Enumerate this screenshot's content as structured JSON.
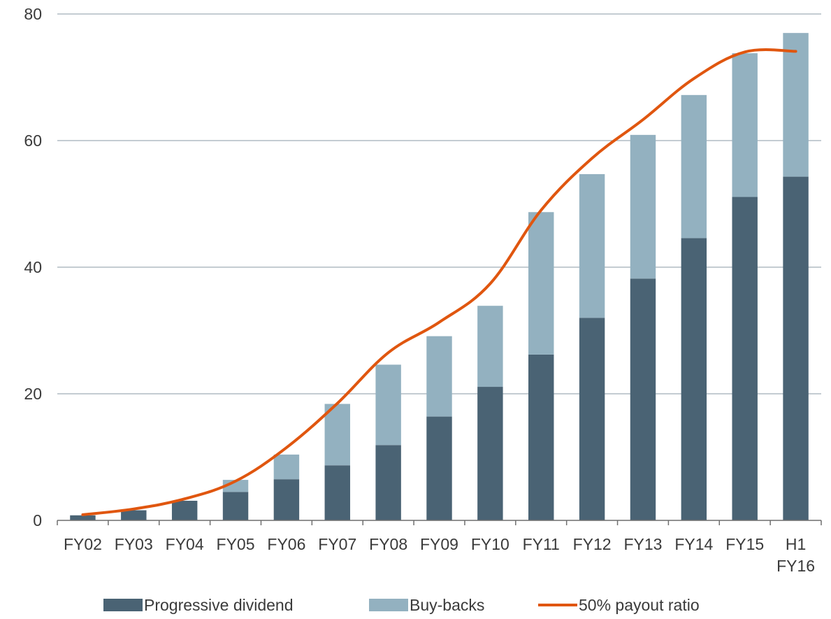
{
  "chart_data": {
    "type": "bar",
    "stacked": true,
    "categories": [
      [
        "FY02"
      ],
      [
        "FY03"
      ],
      [
        "FY04"
      ],
      [
        "FY05"
      ],
      [
        "FY06"
      ],
      [
        "FY07"
      ],
      [
        "FY08"
      ],
      [
        "FY09"
      ],
      [
        "FY10"
      ],
      [
        "FY11"
      ],
      [
        "FY12"
      ],
      [
        "FY13"
      ],
      [
        "FY14"
      ],
      [
        "FY15"
      ],
      [
        "H1",
        "FY16"
      ]
    ],
    "series": [
      {
        "name": "Progressive dividend",
        "type": "bar",
        "color": "#4a6374",
        "values": [
          0.8,
          1.6,
          3.1,
          4.5,
          6.5,
          8.7,
          11.9,
          16.4,
          21.1,
          26.2,
          32.0,
          38.2,
          44.6,
          51.1,
          54.3
        ]
      },
      {
        "name": "Buy-backs",
        "type": "bar",
        "color": "#93b1c0",
        "values": [
          0.0,
          0.0,
          0.0,
          1.9,
          3.9,
          9.7,
          12.7,
          12.7,
          12.8,
          22.5,
          22.7,
          22.7,
          22.6,
          22.7,
          22.7
        ]
      },
      {
        "name": "50% payout ratio",
        "type": "line",
        "color": "#e0560f",
        "smooth": true,
        "values": [
          0.9,
          1.8,
          3.4,
          6.2,
          11.5,
          18.5,
          26.5,
          31.3,
          37.4,
          49.0,
          57.2,
          63.3,
          69.8,
          74.0,
          74.1
        ]
      }
    ],
    "ylim": [
      0,
      80
    ],
    "yticks": [
      0,
      20,
      40,
      60,
      80
    ],
    "grid": true,
    "legend": "bottom",
    "title": "",
    "xlabel": "",
    "ylabel": ""
  }
}
